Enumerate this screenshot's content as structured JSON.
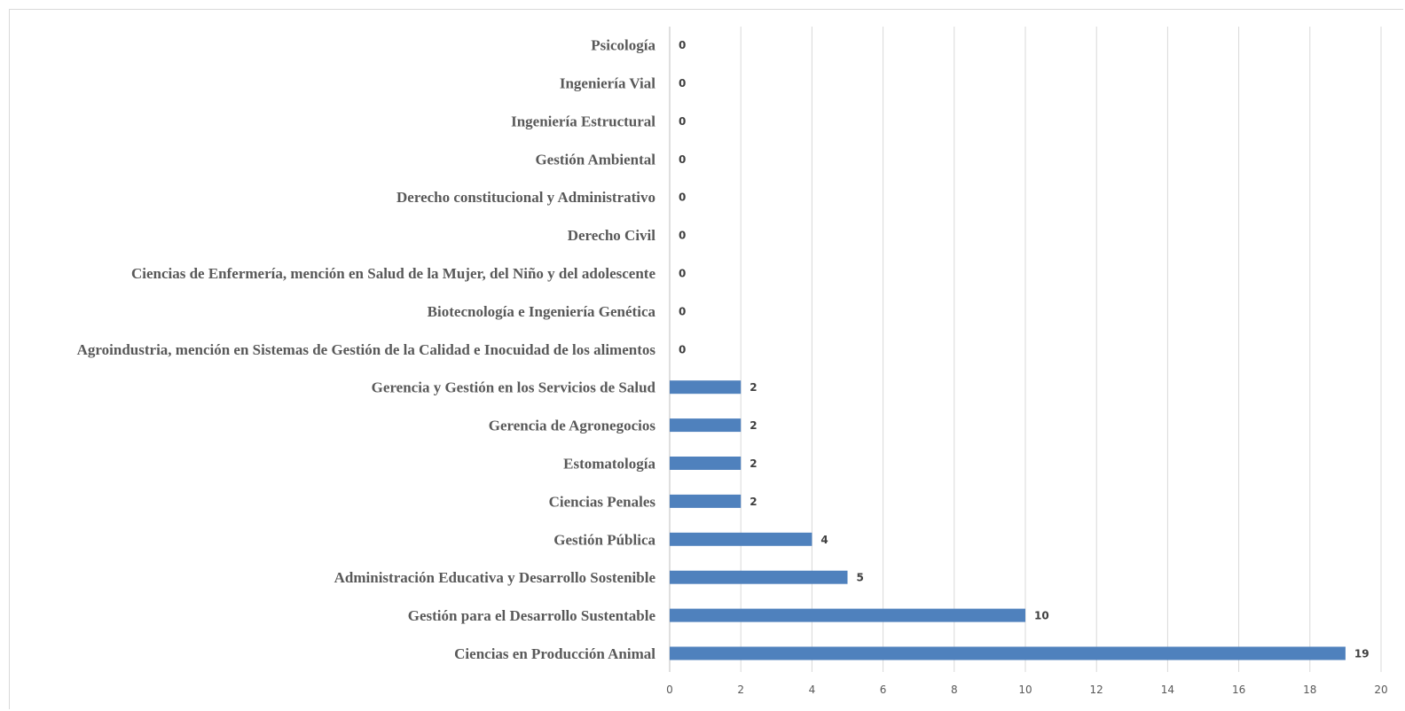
{
  "chart_data": {
    "type": "bar",
    "orientation": "horizontal",
    "categories": [
      "Ciencias en Producción Animal",
      "Gestión para el Desarrollo Sustentable",
      "Administración Educativa y Desarrollo Sostenible",
      "Gestión Pública",
      "Ciencias Penales",
      "Estomatología",
      "Gerencia de Agronegocios",
      "Gerencia y Gestión en los Servicios de Salud",
      "Agroindustria, mención en Sistemas de Gestión de la Calidad e Inocuidad de los alimentos",
      "Biotecnología e Ingeniería Genética",
      "Ciencias de Enfermería, mención en Salud de la Mujer, del Niño y del adolescente",
      "Derecho Civil",
      "Derecho constitucional y Administrativo",
      "Gestión Ambiental",
      "Ingeniería Estructural",
      "Ingeniería Vial",
      "Psicología"
    ],
    "values": [
      19,
      10,
      5,
      4,
      2,
      2,
      2,
      2,
      0,
      0,
      0,
      0,
      0,
      0,
      0,
      0,
      0
    ],
    "xlim": [
      0,
      20
    ],
    "x_ticks": [
      "0",
      "2",
      "4",
      "6",
      "8",
      "10",
      "12",
      "14",
      "16",
      "18",
      "20"
    ],
    "grid": "vertical",
    "legend": "none",
    "bar_color": "#4f81bd",
    "title": "",
    "xlabel": "",
    "ylabel": ""
  }
}
